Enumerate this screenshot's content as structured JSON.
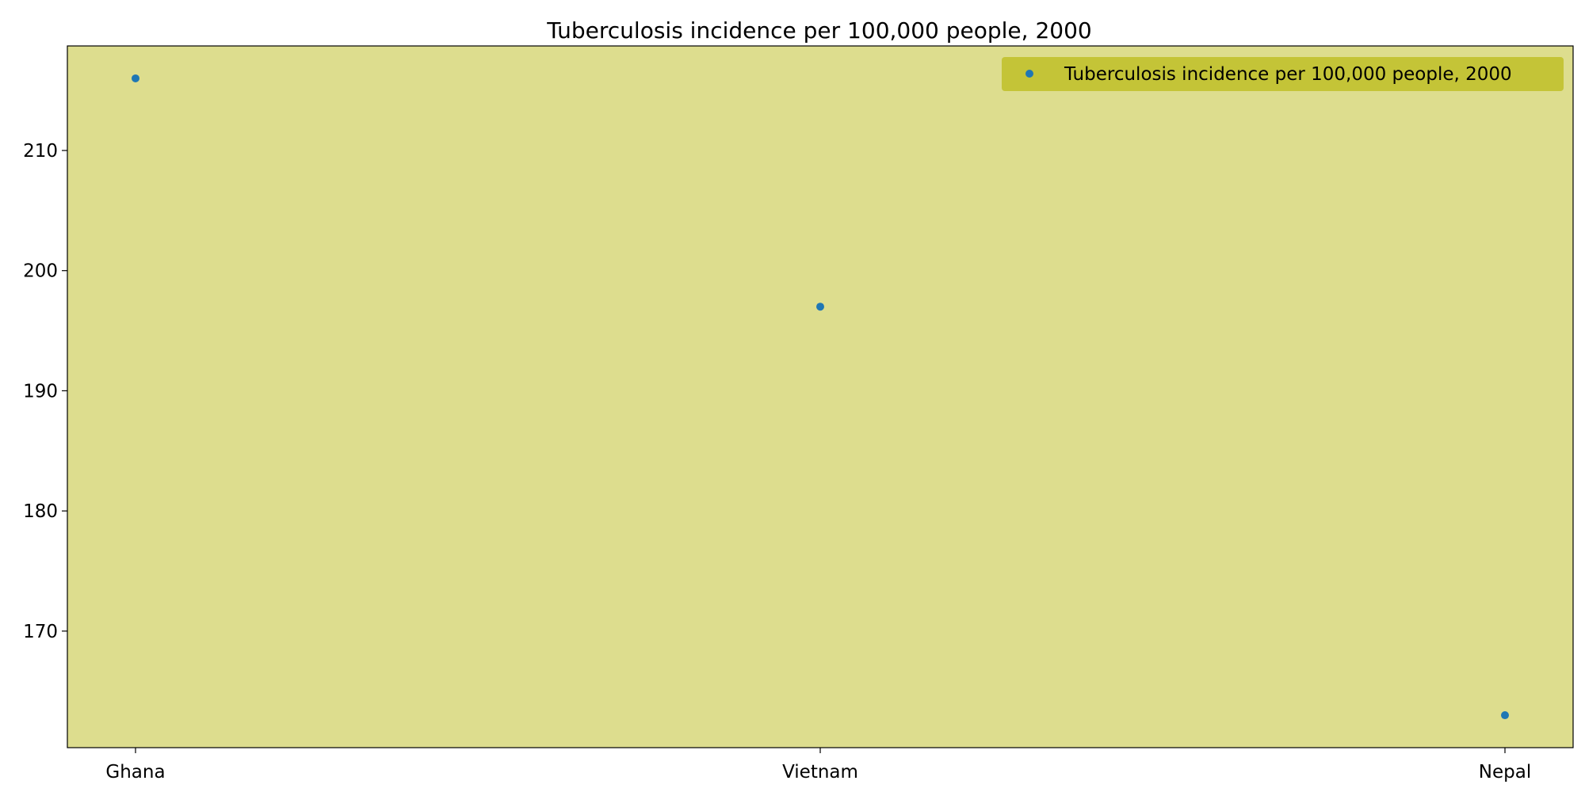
{
  "chart_data": {
    "type": "scatter",
    "title": "Tuberculosis incidence per 100,000 people, 2000",
    "xlabel": "",
    "ylabel": "",
    "categories": [
      "Ghana",
      "Vietnam",
      "Nepal"
    ],
    "series": [
      {
        "name": "Tuberculosis incidence per 100,000 people, 2000",
        "values": [
          216,
          197,
          163
        ]
      }
    ],
    "ylim": [
      160.3,
      218.7
    ],
    "yticks": [
      170,
      180,
      190,
      200,
      210
    ],
    "grid": false,
    "legend_position": "top-right",
    "colors": {
      "plot_background": "#dddd8e",
      "legend_background": "#c4c437",
      "marker": "#1f77b4",
      "axis": "#000000"
    }
  }
}
